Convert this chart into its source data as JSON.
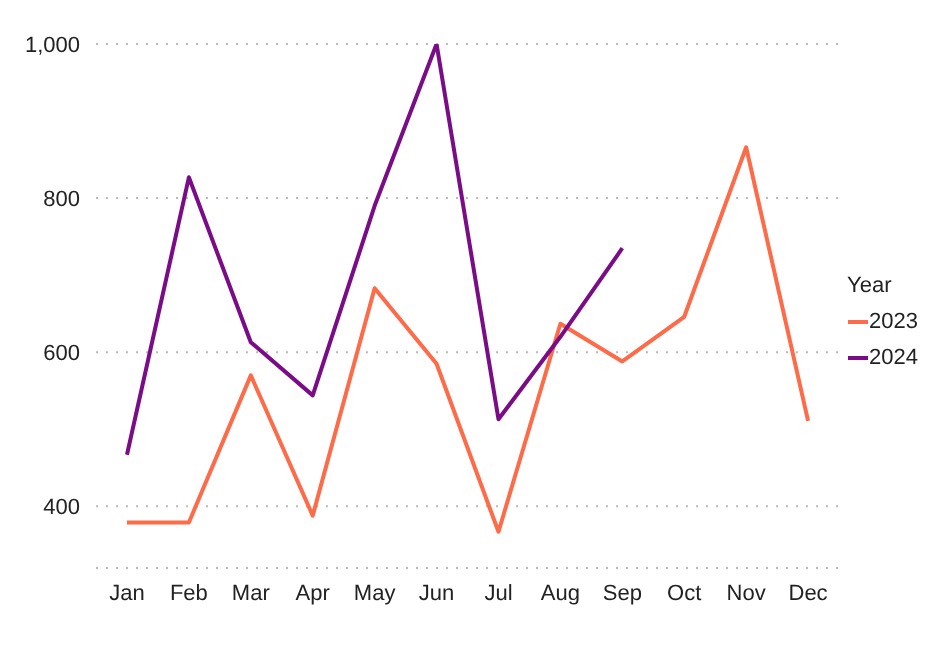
{
  "chart_data": {
    "type": "line",
    "legend_title": "Year",
    "categories": [
      "Jan",
      "Feb",
      "Mar",
      "Apr",
      "May",
      "Jun",
      "Jul",
      "Aug",
      "Sep",
      "Oct",
      "Nov",
      "Dec"
    ],
    "series": [
      {
        "name": "2023",
        "color": "#fd6b48",
        "values": [
          379,
          379,
          570,
          388,
          683,
          585,
          367,
          637,
          588,
          646,
          866,
          511
        ]
      },
      {
        "name": "2024",
        "color": "#7a0c87",
        "values": [
          467,
          827,
          613,
          544,
          790,
          1000,
          513,
          620,
          735,
          null,
          null,
          null
        ]
      }
    ],
    "ylim": [
      320,
      1000
    ],
    "yticks": [
      {
        "value": 400,
        "label": "400"
      },
      {
        "value": 600,
        "label": "600"
      },
      {
        "value": 800,
        "label": "800"
      },
      {
        "value": 1000,
        "label": "1,000"
      }
    ],
    "grid": "y",
    "legend": "right",
    "marker": "none",
    "line_style": "solid"
  }
}
